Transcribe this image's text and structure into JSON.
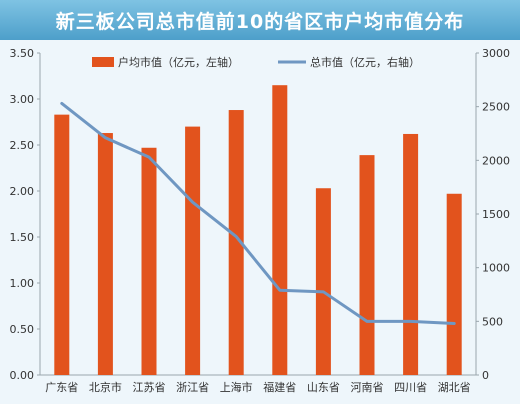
{
  "title": "新三板公司总市值前10的省区市户均市值分布",
  "colors": {
    "bar": "#e2531d",
    "line": "#6f97c2",
    "title_bg": "#5aaad3",
    "plot_bg": "#eef6fb"
  },
  "chart_data": {
    "type": "bar",
    "title": "新三板公司总市值前10的省区市户均市值分布",
    "categories": [
      "广东省",
      "北京市",
      "江苏省",
      "浙江省",
      "上海市",
      "福建省",
      "山东省",
      "河南省",
      "四川省",
      "湖北省"
    ],
    "series": [
      {
        "name": "户均市值（亿元，左轴）",
        "type": "bar",
        "axis": "left",
        "values": [
          2.83,
          2.63,
          2.47,
          2.7,
          2.88,
          3.15,
          2.03,
          2.39,
          2.62,
          1.97
        ]
      },
      {
        "name": "总市值（亿元，右轴）",
        "type": "line",
        "axis": "right",
        "values": [
          2530,
          2210,
          2030,
          1610,
          1290,
          790,
          775,
          500,
          500,
          480
        ]
      }
    ],
    "y_left": {
      "min": 0,
      "max": 3.5,
      "ticks": [
        "0.00",
        "0.50",
        "1.00",
        "1.50",
        "2.00",
        "2.50",
        "3.00",
        "3.50"
      ]
    },
    "y_right": {
      "min": 0,
      "max": 3000,
      "ticks": [
        "0",
        "500",
        "1000",
        "1500",
        "2000",
        "2500",
        "3000"
      ]
    },
    "grid": false,
    "legend_position": "top-center"
  }
}
